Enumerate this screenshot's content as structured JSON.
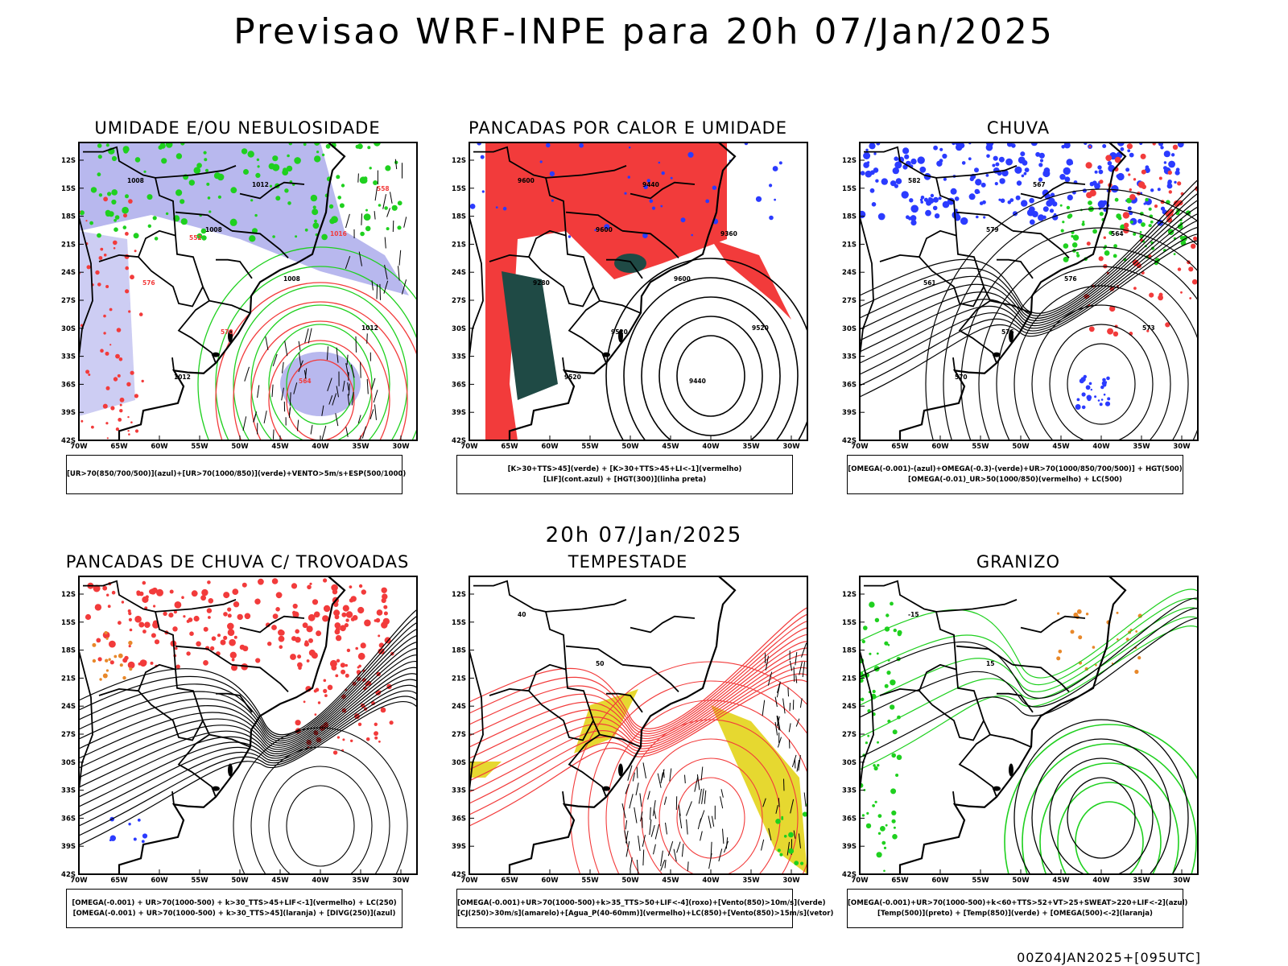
{
  "header": {
    "title": "Previsao WRF-INPE  para 20h 07/Jan/2025"
  },
  "mid_label": "20h 07/Jan/2025",
  "footer": "00Z04JAN2025+[095UTC]",
  "axis": {
    "lat_ticks": [
      "12S",
      "15S",
      "18S",
      "21S",
      "24S",
      "27S",
      "30S",
      "33S",
      "36S",
      "39S",
      "42S"
    ],
    "lon_ticks": [
      "70W",
      "65W",
      "60W",
      "55W",
      "50W",
      "45W",
      "40W",
      "35W",
      "30W"
    ]
  },
  "colors": {
    "red": "#f23b3b",
    "green": "#1fd01f",
    "blue": "#2b3bff",
    "lavender": "#b8b8ee",
    "teal": "#1f4a45",
    "yellow": "#e6d830",
    "orange": "#e8882a"
  },
  "panels": [
    {
      "title": "UMIDADE E/OU NEBULOSIDADE",
      "legend": [
        "[UR>70(850/700/500)](azul)+[UR>70(1000/850)](verde)+VENTO>5m/s+ESP(500/1000)"
      ],
      "contour_labels": [
        "1008",
        "1008",
        "1008",
        "1012",
        "1012",
        "1012",
        "1016",
        "576",
        "570",
        "564",
        "558",
        "552"
      ]
    },
    {
      "title": "PANCADAS POR CALOR E UMIDADE",
      "legend": [
        "[K>30+TTS>45](verde) + [K>30+TTS>45+LI<-1](vermelho)",
        "[LIF](cont.azul) + [HGT(300)](linha preta)"
      ],
      "contour_labels": [
        "9600",
        "9600",
        "9600",
        "9520",
        "9520",
        "9440",
        "9360",
        "9280",
        "9520",
        "9440"
      ]
    },
    {
      "title": "CHUVA",
      "legend": [
        "[OMEGA(-0.001)-(azul)+OMEGA(-0.3)-(verde)+UR>70(1000/850/700/500)] + HGT(500)",
        "[OMEGA(-0.01)_UR>50(1000/850)(vermelho) + LC(500)"
      ],
      "contour_labels": [
        "582",
        "579",
        "576",
        "573",
        "570",
        "567",
        "564",
        "561",
        "576"
      ]
    },
    {
      "title": "PANCADAS DE CHUVA C/ TROVOADAS",
      "legend": [
        "[OMEGA(-0.001) + UR>70(1000-500) + k>30_TTS>45+LIF<-1](vermelho) + LC(250)",
        "[OMEGA(-0.001) + UR>70(1000-500) + k>30_TTS>45](laranja) + [DIVG(250)](azul)"
      ],
      "contour_labels": []
    },
    {
      "title": "TEMPESTADE",
      "legend": [
        "[OMEGA(-0.001)+UR>70(1000-500)+k>35_TTS>50+LIF<-4](roxo)+[Vento(850)>10m/s](verde)",
        "[CJ(250)>30m/s](amarelo)+[Agua_P(40-60mm)](vermelho)+LC(850)+[Vento(850)>15m/s](vetor)"
      ],
      "contour_labels": [
        "40",
        "50"
      ]
    },
    {
      "title": "GRANIZO",
      "legend": [
        "[OMEGA(-0.001)+UR>70(1000-500)+k<60+TTS>52+VT>25+SWEAT>220+LIF<-2](azul)",
        "[Temp(500)](preto) + [Temp(850)](verde) + [OMEGA(500)<-2](laranja)"
      ],
      "contour_labels": [
        "-15",
        "15"
      ]
    }
  ]
}
